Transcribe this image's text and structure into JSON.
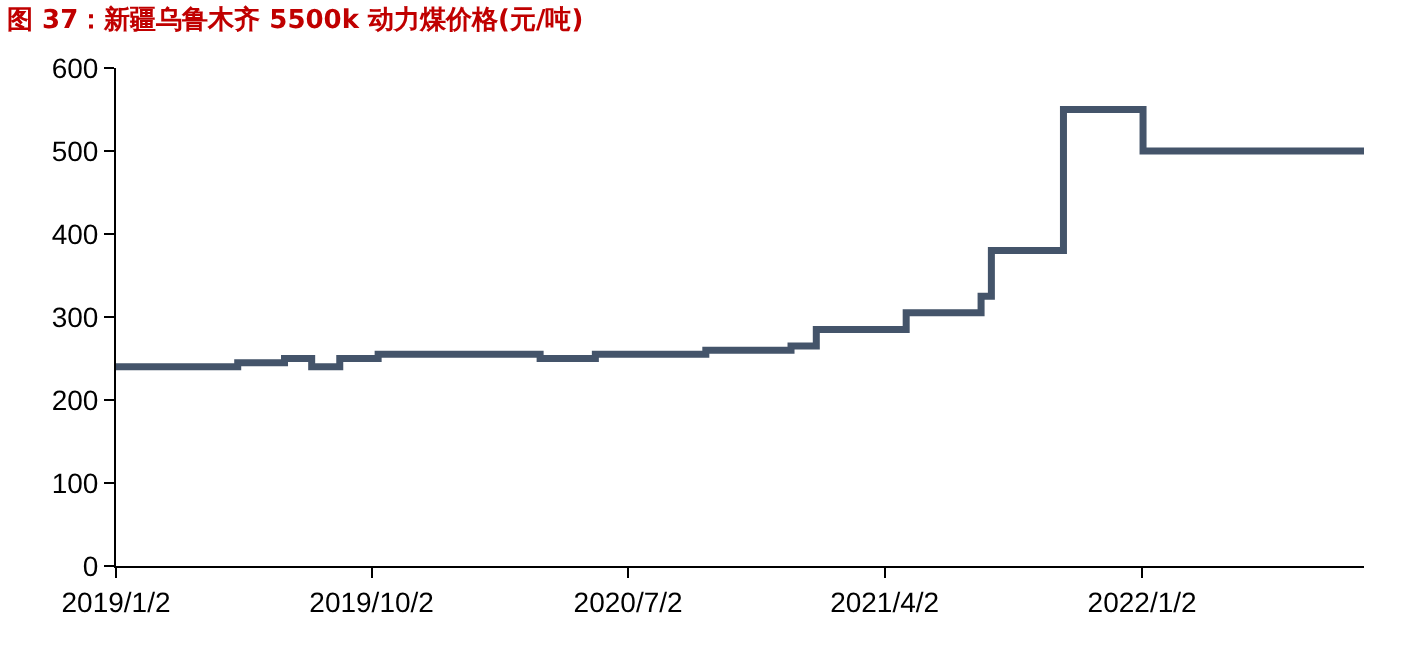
{
  "chart_data": {
    "type": "step",
    "title": "图 37：新疆乌鲁木齐 5500k 动力煤价格(元/吨)",
    "x": [
      "2019-01-02",
      "2019-05-12",
      "2019-07-01",
      "2019-07-30",
      "2019-08-29",
      "2019-10-09",
      "2020-03-30",
      "2020-05-28",
      "2020-09-23",
      "2020-12-23",
      "2021-01-19",
      "2021-04-25",
      "2021-07-14",
      "2021-07-25",
      "2021-10-10",
      "2022-01-03",
      "2022-08-27"
    ],
    "series": [
      {
        "color": "#44546a",
        "values": [
          240,
          245,
          250,
          240,
          250,
          255,
          250,
          255,
          260,
          265,
          285,
          305,
          325,
          380,
          550,
          500,
          500
        ]
      }
    ],
    "xlim": [
      "2019-01-02",
      "2022-08-27"
    ],
    "xticks": [
      {
        "value": "2019-01-02",
        "label": "2019/1/2"
      },
      {
        "value": "2019-10-02",
        "label": "2019/10/2"
      },
      {
        "value": "2020-07-02",
        "label": "2020/7/2"
      },
      {
        "value": "2021-04-02",
        "label": "2021/4/2"
      },
      {
        "value": "2022-01-02",
        "label": "2022/1/2"
      }
    ],
    "ylim": [
      0,
      600
    ],
    "yticks": [
      0,
      100,
      200,
      300,
      400,
      500,
      600
    ]
  }
}
